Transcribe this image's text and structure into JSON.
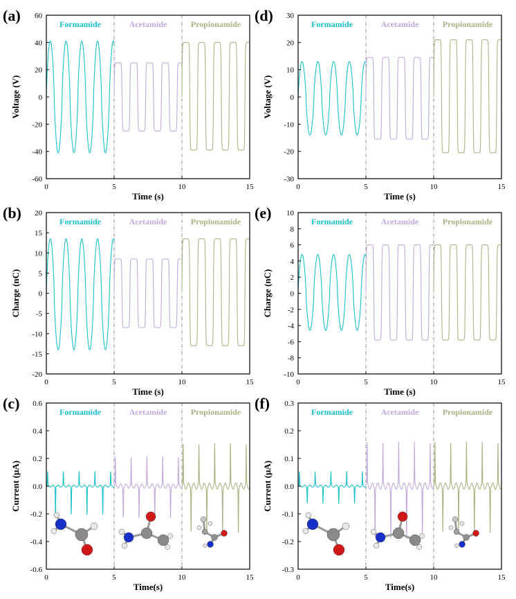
{
  "colors": {
    "Formamide": "#18c0cc",
    "Acetamide": "#c2a9dc",
    "Propionamide": "#a8b482"
  },
  "chart_data": [
    {
      "panel": "(a)",
      "type": "line",
      "ylabel": "Voltage (V)",
      "xlabel": "Time (s)",
      "xlim": [
        0,
        15
      ],
      "ylim": [
        -60,
        60
      ],
      "xticks": [
        0,
        5,
        10,
        15
      ],
      "yticks": [
        -60,
        -40,
        -20,
        0,
        20,
        40,
        60
      ],
      "separators": [
        5,
        10
      ],
      "series": [
        {
          "name": "Formamide",
          "x_range": [
            0,
            5
          ],
          "cycles": 4.3,
          "shape": "sine",
          "max": 41,
          "min": -41
        },
        {
          "name": "Acetamide",
          "x_range": [
            5,
            10
          ],
          "cycles": 4.3,
          "shape": "square",
          "max": 25,
          "min": -25
        },
        {
          "name": "Propionamide",
          "x_range": [
            10,
            15
          ],
          "cycles": 4.3,
          "shape": "square",
          "max": 40,
          "min": -39
        }
      ]
    },
    {
      "panel": "(b)",
      "type": "line",
      "ylabel": "Charge (nC)",
      "xlabel": "Time (s)",
      "xlim": [
        0,
        15
      ],
      "ylim": [
        -20,
        20
      ],
      "xticks": [
        0,
        5,
        10,
        15
      ],
      "yticks": [
        -20,
        -15,
        -10,
        -5,
        0,
        5,
        10,
        15,
        20
      ],
      "separators": [
        5,
        10
      ],
      "series": [
        {
          "name": "Formamide",
          "x_range": [
            0,
            5
          ],
          "cycles": 4.3,
          "shape": "sine",
          "max": 13.5,
          "min": -14
        },
        {
          "name": "Acetamide",
          "x_range": [
            5,
            10
          ],
          "cycles": 4.3,
          "shape": "square",
          "max": 8.5,
          "min": -8.5
        },
        {
          "name": "Propionamide",
          "x_range": [
            10,
            15
          ],
          "cycles": 4.3,
          "shape": "square",
          "max": 13.5,
          "min": -13
        }
      ]
    },
    {
      "panel": "(c)",
      "type": "line",
      "ylabel": "Current (μA)",
      "xlabel": "Time(s)",
      "xlim": [
        0,
        15
      ],
      "ylim": [
        -0.6,
        0.6
      ],
      "xticks": [
        0,
        5,
        10,
        15
      ],
      "yticks": [
        -0.6,
        -0.4,
        -0.2,
        0.0,
        0.2,
        0.4,
        0.6
      ],
      "separators": [
        5,
        10
      ],
      "series": [
        {
          "name": "Formamide",
          "x_range": [
            0,
            5
          ],
          "cycles": 4.3,
          "shape": "spikes",
          "max": 0.1,
          "min": -0.2
        },
        {
          "name": "Acetamide",
          "x_range": [
            5,
            10
          ],
          "cycles": 4.3,
          "shape": "spikes",
          "max": 0.2,
          "min": -0.22
        },
        {
          "name": "Propionamide",
          "x_range": [
            10,
            15
          ],
          "cycles": 4.3,
          "shape": "spikes",
          "max": 0.29,
          "min": -0.32
        }
      ]
    },
    {
      "panel": "(d)",
      "type": "line",
      "ylabel": "Voltage (V)",
      "xlabel": "Time (s)",
      "xlim": [
        0,
        15
      ],
      "ylim": [
        -30,
        30
      ],
      "xticks": [
        0,
        5,
        10,
        15
      ],
      "yticks": [
        -30,
        -20,
        -10,
        0,
        10,
        20,
        30
      ],
      "separators": [
        5,
        10
      ],
      "series": [
        {
          "name": "Formamide",
          "x_range": [
            0,
            5
          ],
          "cycles": 4.3,
          "shape": "sine",
          "max": 13,
          "min": -14
        },
        {
          "name": "Acetamide",
          "x_range": [
            5,
            10
          ],
          "cycles": 4.3,
          "shape": "square",
          "max": 14.5,
          "min": -15.5
        },
        {
          "name": "Propionamide",
          "x_range": [
            10,
            15
          ],
          "cycles": 4.3,
          "shape": "square",
          "max": 21,
          "min": -20.5
        }
      ]
    },
    {
      "panel": "(e)",
      "type": "line",
      "ylabel": "Charge (nC)",
      "xlabel": "Time (s)",
      "xlim": [
        0,
        15
      ],
      "ylim": [
        -10,
        10
      ],
      "xticks": [
        0,
        5,
        10,
        15
      ],
      "yticks": [
        -10,
        -8,
        -6,
        -4,
        -2,
        0,
        2,
        4,
        6,
        8,
        10
      ],
      "separators": [
        5,
        10
      ],
      "series": [
        {
          "name": "Formamide",
          "x_range": [
            0,
            5
          ],
          "cycles": 4.3,
          "shape": "sine",
          "max": 4.8,
          "min": -4.6
        },
        {
          "name": "Acetamide",
          "x_range": [
            5,
            10
          ],
          "cycles": 4.3,
          "shape": "square",
          "max": 6,
          "min": -5.8
        },
        {
          "name": "Propionamide",
          "x_range": [
            10,
            15
          ],
          "cycles": 4.3,
          "shape": "square",
          "max": 6,
          "min": -5.8
        }
      ]
    },
    {
      "panel": "(f)",
      "type": "line",
      "ylabel": "Current (μA)",
      "xlabel": "Time(s)",
      "xlim": [
        0,
        15
      ],
      "ylim": [
        -0.3,
        0.3
      ],
      "xticks": [
        0,
        5,
        10,
        15
      ],
      "yticks": [
        -0.3,
        -0.2,
        -0.1,
        0.0,
        0.1,
        0.2,
        0.3
      ],
      "separators": [
        5,
        10
      ],
      "series": [
        {
          "name": "Formamide",
          "x_range": [
            0,
            5
          ],
          "cycles": 4.3,
          "shape": "spikes",
          "max": 0.05,
          "min": -0.06
        },
        {
          "name": "Acetamide",
          "x_range": [
            5,
            10
          ],
          "cycles": 4.3,
          "shape": "spikes",
          "max": 0.15,
          "min": -0.18
        },
        {
          "name": "Propionamide",
          "x_range": [
            10,
            15
          ],
          "cycles": 4.3,
          "shape": "spikes",
          "max": 0.15,
          "min": -0.16
        }
      ]
    }
  ],
  "molecule_icons": [
    "formamide-molecule",
    "acetamide-molecule",
    "propionamide-molecule"
  ]
}
